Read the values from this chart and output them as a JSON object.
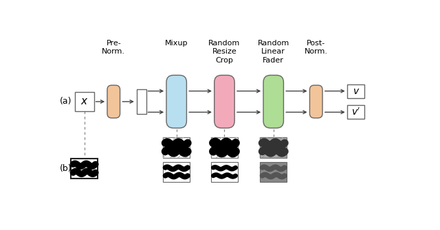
{
  "bg_color": "#ffffff",
  "label_a": "(a)",
  "label_b": "(b)",
  "title_prenorm": "Pre-\nNorm.",
  "title_mixup": "Mixup",
  "title_rrc": "Random\nResize\nCrop",
  "title_rlf": "Random\nLinear\nFader",
  "title_postnorm": "Post-\nNorm.",
  "color_prenorm": "#F2C49A",
  "color_mixup": "#B8DFF0",
  "color_rrc": "#F2AABB",
  "color_rlf": "#AEDD95",
  "color_postnorm": "#F2C49A",
  "color_box_border": "#666666",
  "arrow_color": "#444444"
}
